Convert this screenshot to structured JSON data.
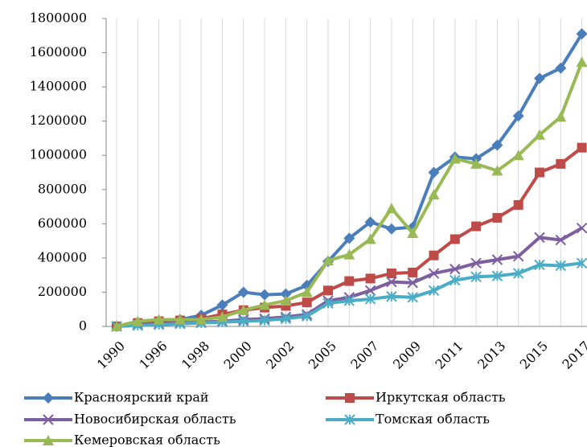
{
  "chart_data": {
    "type": "line",
    "categories": [
      "1990",
      null,
      "1996",
      null,
      "1998",
      null,
      "2000",
      null,
      "2002",
      null,
      "2005",
      null,
      "2007",
      null,
      "2009",
      null,
      "2011",
      null,
      "2013",
      null,
      "2015",
      null,
      "2017"
    ],
    "series": [
      {
        "name": "Красноярский край",
        "color": "#4a7ebb",
        "marker": "diamond",
        "values": [
          0,
          20000,
          30000,
          40000,
          65000,
          125000,
          200000,
          185000,
          190000,
          240000,
          380000,
          515000,
          610000,
          570000,
          580000,
          900000,
          990000,
          980000,
          1060000,
          1230000,
          1450000,
          1510000,
          1710000
        ]
      },
      {
        "name": "Иркутская область",
        "color": "#be4b48",
        "marker": "square",
        "values": [
          0,
          20000,
          30000,
          35000,
          45000,
          70000,
          95000,
          110000,
          120000,
          140000,
          210000,
          265000,
          280000,
          310000,
          315000,
          415000,
          510000,
          585000,
          635000,
          710000,
          900000,
          950000,
          1045000
        ]
      },
      {
        "name": "Новосибирская область",
        "color": "#7d5fa0",
        "marker": "x",
        "values": [
          0,
          10000,
          15000,
          20000,
          25000,
          30000,
          40000,
          45000,
          55000,
          70000,
          150000,
          170000,
          210000,
          260000,
          255000,
          310000,
          335000,
          370000,
          390000,
          410000,
          520000,
          505000,
          575000
        ]
      },
      {
        "name": "Томская область",
        "color": "#4bacc6",
        "marker": "star",
        "values": [
          0,
          5000,
          10000,
          15000,
          20000,
          25000,
          30000,
          35000,
          45000,
          60000,
          135000,
          150000,
          160000,
          175000,
          170000,
          210000,
          270000,
          290000,
          295000,
          310000,
          360000,
          355000,
          370000
        ]
      },
      {
        "name": "Кемеровская область",
        "color": "#98b954",
        "marker": "triangle",
        "values": [
          0,
          30000,
          40000,
          40000,
          40000,
          55000,
          95000,
          125000,
          150000,
          200000,
          385000,
          420000,
          510000,
          690000,
          545000,
          770000,
          980000,
          950000,
          910000,
          1000000,
          1120000,
          1225000,
          1545000
        ]
      }
    ],
    "ylim": [
      0,
      1800000
    ],
    "yticks": [
      0,
      200000,
      400000,
      600000,
      800000,
      1000000,
      1200000,
      1400000,
      1600000,
      1800000
    ],
    "x_grid": true
  }
}
